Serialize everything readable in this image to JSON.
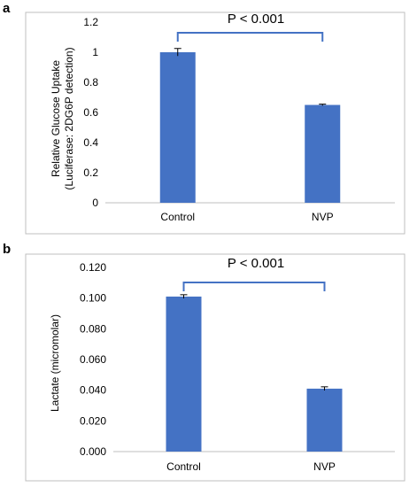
{
  "panels": [
    {
      "label": "a",
      "significance": "P < 0.001",
      "ylabel_line1": "Relative Glucose Uptake",
      "ylabel_line2": "(Luciferase: 2DG6P detection)"
    },
    {
      "label": "b",
      "significance": "P < 0.001",
      "ylabel": "Lactate (micromolar)"
    }
  ],
  "colors": {
    "bar": "#4472c4",
    "bracket": "#4472c4",
    "frame": "#bfbfbf",
    "axis": "#bfbfbf",
    "text": "#000000"
  },
  "chart_data": [
    {
      "type": "bar",
      "categories": [
        "Control",
        "NVP"
      ],
      "values": [
        1.0,
        0.65
      ],
      "errors": [
        0.025,
        0.005
      ],
      "ylabel": "Relative Glucose Uptake (Luciferase: 2DG6P detection)",
      "ylim": [
        0,
        1.2
      ],
      "yticks": [
        "0",
        "0.2",
        "0.4",
        "0.6",
        "0.8",
        "1",
        "1.2"
      ],
      "grid": false,
      "legend": "none",
      "annotation": "P < 0.001"
    },
    {
      "type": "bar",
      "categories": [
        "Control",
        "NVP"
      ],
      "values": [
        0.101,
        0.041
      ],
      "errors": [
        0.0012,
        0.0012
      ],
      "ylabel": "Lactate (micromolar)",
      "ylim": [
        0,
        0.12
      ],
      "yticks": [
        "0.000",
        "0.020",
        "0.040",
        "0.060",
        "0.080",
        "0.100",
        "0.120"
      ],
      "grid": false,
      "legend": "none",
      "annotation": "P < 0.001"
    }
  ]
}
